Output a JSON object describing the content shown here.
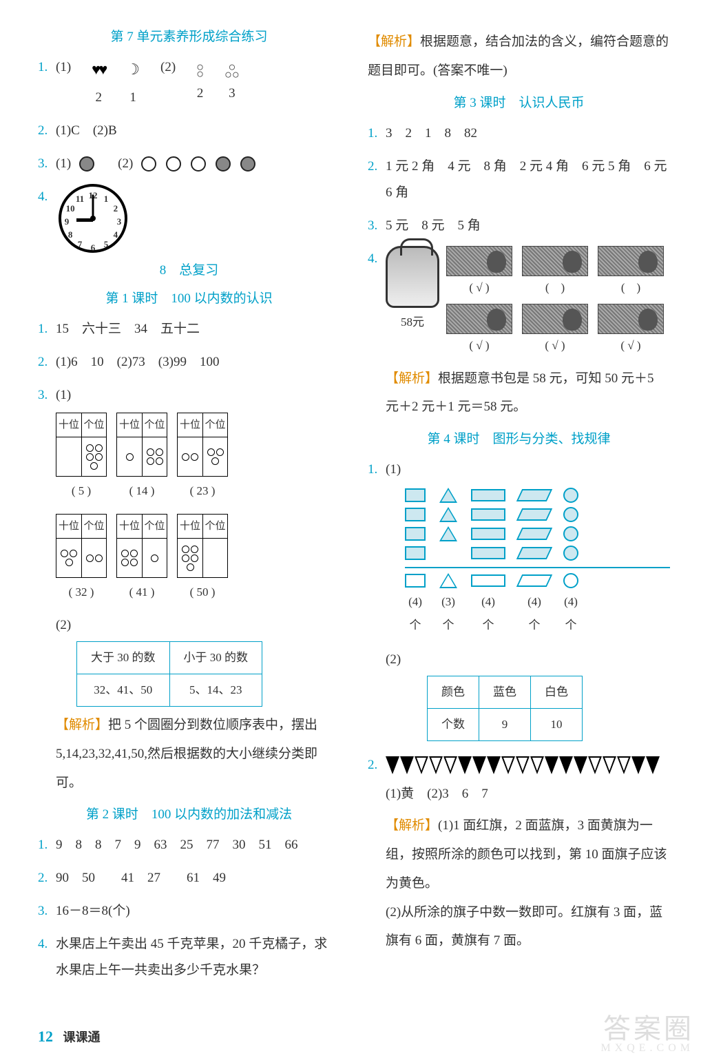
{
  "left": {
    "title1": "第 7 单元素养形成综合练习",
    "q1": {
      "num": "1.",
      "p1": "(1)",
      "p2": "(2)",
      "hearts_sub": "2",
      "moon_sub": "1",
      "stack_sub": "2",
      "tri_sub": "3"
    },
    "q2": {
      "num": "2.",
      "text": "(1)C　(2)B"
    },
    "q3": {
      "num": "3.",
      "p1": "(1)",
      "p2": "(2)"
    },
    "q4": {
      "num": "4."
    },
    "unit8_title": "8　总复习",
    "lesson1_title": "第 1 课时　100 以内数的认识",
    "l1q1": {
      "num": "1.",
      "text": "15　六十三　34　五十二"
    },
    "l1q2": {
      "num": "2.",
      "text": "(1)6　10　(2)73　(3)99　100"
    },
    "l1q3": {
      "num": "3.",
      "p1": "(1)",
      "p2": "(2)",
      "head_t": "十位",
      "head_o": "个位",
      "caps": [
        "( 5 )",
        "( 14 )",
        "( 23 )",
        "( 32 )",
        "( 41 )",
        "( 50 )"
      ],
      "tbl_h1": "大于 30 的数",
      "tbl_h2": "小于 30 的数",
      "tbl_c1": "32、41、50",
      "tbl_c2": "5、14、23",
      "jiexi_label": "【解析】",
      "jiexi": "把 5 个圆圈分到数位顺序表中，摆出 5,14,23,32,41,50,然后根据数的大小继续分类即可。"
    },
    "lesson2_title": "第 2 课时　100 以内数的加法和减法",
    "l2q1": {
      "num": "1.",
      "text": "9　8　8　7　9　63　25　77　30　51　66"
    },
    "l2q2": {
      "num": "2.",
      "text": "90　50　　41　27　　61　49"
    },
    "l2q3": {
      "num": "3.",
      "text": "16－8＝8(个)"
    },
    "l2q4": {
      "num": "4.",
      "text": "水果店上午卖出 45 千克苹果，20 千克橘子，求水果店上午一共卖出多少千克水果？"
    }
  },
  "right": {
    "top_jiexi_label": "【解析】",
    "top_jiexi": "根据题意，结合加法的含义，编符合题意的题目即可。(答案不唯一)",
    "lesson3_title": "第 3 课时　认识人民币",
    "l3q1": {
      "num": "1.",
      "text": "3　2　1　8　82"
    },
    "l3q2": {
      "num": "2.",
      "text": "1 元 2 角　4 元　8 角　2 元 4 角　6 元 5 角　6 元 6 角"
    },
    "l3q3": {
      "num": "3.",
      "text": "5 元　8 元　5 角"
    },
    "l3q4": {
      "num": "4.",
      "bag_price": "58元",
      "marks": [
        "( √ )",
        "(　)",
        "(　)",
        "( √ )",
        "( √ )",
        "( √ )"
      ],
      "jiexi_label": "【解析】",
      "jiexi": "根据题意书包是 58 元，可知 50 元＋5 元＋2 元＋1 元＝58 元。"
    },
    "lesson4_title": "第 4 课时　图形与分类、找规律",
    "l4q1": {
      "num": "1.",
      "p1": "(1)",
      "p2": "(2)",
      "counts": [
        "(4)",
        "(3)",
        "(4)",
        "(4)",
        "(4)"
      ],
      "unit": "个",
      "tbl_h0": "颜色",
      "tbl_h1": "蓝色",
      "tbl_h2": "白色",
      "tbl_r0": "个数",
      "tbl_r1": "9",
      "tbl_r2": "10"
    },
    "l4q2": {
      "num": "2.",
      "ans": "(1)黄　(2)3　6　7",
      "jiexi_label": "【解析】",
      "jiexi1": "(1)1 面红旗，2 面蓝旗，3 面黄旗为一组，按照所涂的颜色可以找到，第 10 面旗子应该为黄色。",
      "jiexi2": "(2)从所涂的旗子中数一数即可。红旗有 3 面，蓝旗有 6 面，黄旗有 7 面。"
    }
  },
  "footer": {
    "page": "12",
    "book": "课课通"
  },
  "watermark": {
    "main": "答案圈",
    "sub": "MXQE.COM"
  },
  "clock": {
    "hour_angle": -180,
    "minute_angle": -90
  },
  "pv_data": [
    {
      "tens": 0,
      "ones": 5
    },
    {
      "tens": 1,
      "ones": 4
    },
    {
      "tens": 2,
      "ones": 3
    },
    {
      "tens": 3,
      "ones": 2
    },
    {
      "tens": 4,
      "ones": 1
    },
    {
      "tens": 5,
      "ones": 0
    }
  ],
  "colors": {
    "accent": "#00a0c8",
    "jiexi": "#e08b00"
  }
}
